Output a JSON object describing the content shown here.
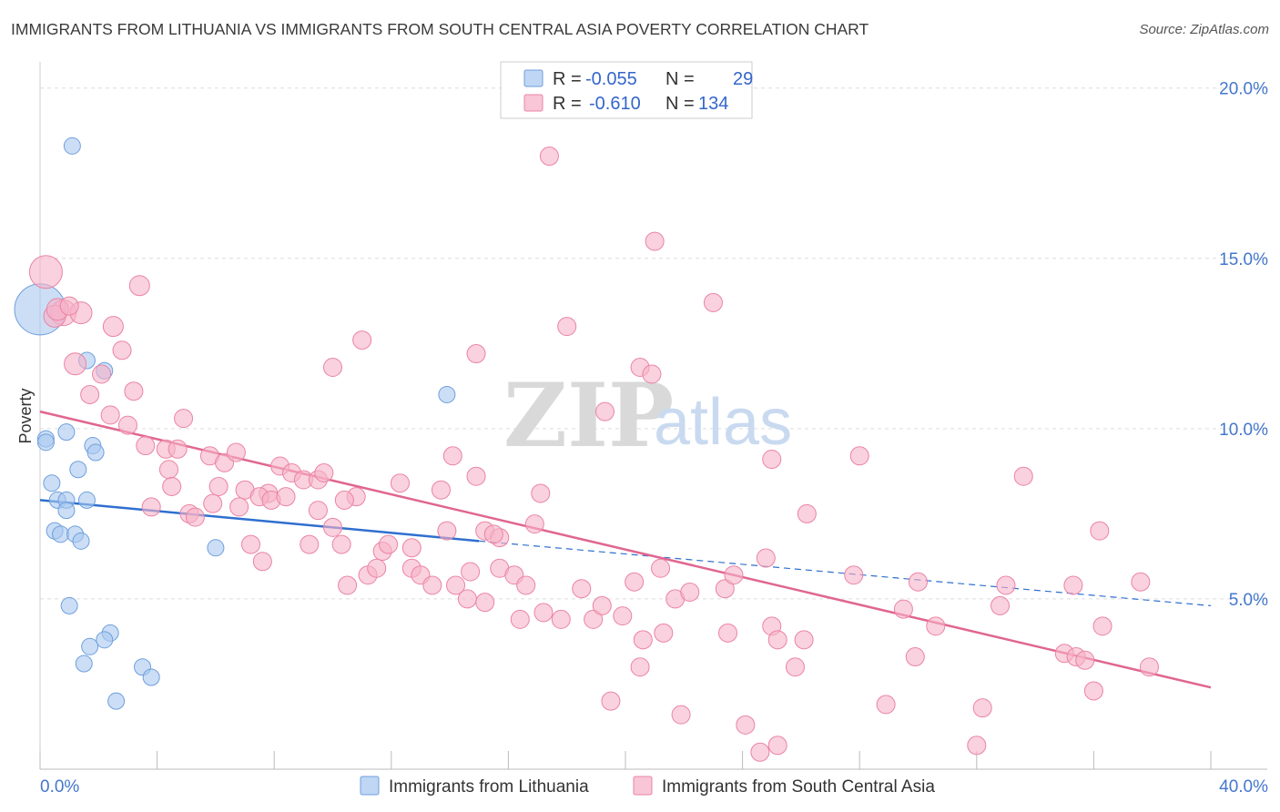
{
  "header": {
    "title": "IMMIGRANTS FROM LITHUANIA VS IMMIGRANTS FROM SOUTH CENTRAL ASIA POVERTY CORRELATION CHART",
    "source": "Source: ZipAtlas.com"
  },
  "watermark": {
    "zip": "ZIP",
    "atlas": "atlas"
  },
  "legend": {
    "rows": [
      {
        "r_label": "R =",
        "r_value": "-0.055",
        "n_label": "N =",
        "n_value": "29",
        "color": "#a9c8f0"
      },
      {
        "r_label": "R =",
        "r_value": "-0.610",
        "n_label": "N = ",
        "n_value": "134",
        "color": "#f6b3c8"
      }
    ]
  },
  "bottom_legend": {
    "items": [
      {
        "label": "Immigrants from Lithuania",
        "color": "#a9c8f0"
      },
      {
        "label": "Immigrants from South Central Asia",
        "color": "#f6b3c8"
      }
    ]
  },
  "chart_data": {
    "type": "scatter",
    "title": "IMMIGRANTS FROM LITHUANIA VS IMMIGRANTS FROM SOUTH CENTRAL ASIA POVERTY CORRELATION CHART",
    "ylabel": "Poverty",
    "xlabel": "",
    "xlim": [
      0,
      40
    ],
    "ylim": [
      0,
      20.5
    ],
    "x_tick_labels": [
      "0.0%",
      "40.0%"
    ],
    "y_ticks": [
      5,
      10,
      15,
      20
    ],
    "y_tick_labels": [
      "5.0%",
      "10.0%",
      "15.0%",
      "20.0%"
    ],
    "grid": true,
    "series": [
      {
        "name": "Immigrants from Lithuania",
        "color": "#a9c8f0",
        "edge": "#6f9fdc",
        "r": -0.055,
        "n": 29,
        "trend": {
          "x0": 0,
          "y0": 7.9,
          "x1": 15,
          "y1": 6.7,
          "dash_to_x": 40,
          "dash_to_y": 4.8
        },
        "points": [
          [
            0.0,
            13.5,
            28
          ],
          [
            1.1,
            18.3,
            9
          ],
          [
            1.6,
            12.0,
            9
          ],
          [
            2.2,
            11.7,
            9
          ],
          [
            0.2,
            9.7,
            9
          ],
          [
            0.9,
            9.9,
            9
          ],
          [
            1.8,
            9.5,
            9
          ],
          [
            1.9,
            9.3,
            9
          ],
          [
            0.4,
            8.4,
            9
          ],
          [
            1.3,
            8.8,
            9
          ],
          [
            0.6,
            7.9,
            9
          ],
          [
            0.9,
            7.9,
            9
          ],
          [
            0.9,
            7.6,
            9
          ],
          [
            1.6,
            7.9,
            9
          ],
          [
            0.5,
            7.0,
            9
          ],
          [
            0.7,
            6.9,
            9
          ],
          [
            1.2,
            6.9,
            9
          ],
          [
            1.4,
            6.7,
            9
          ],
          [
            6.0,
            6.5,
            9
          ],
          [
            13.9,
            11.0,
            9
          ],
          [
            1.0,
            4.8,
            9
          ],
          [
            2.4,
            4.0,
            9
          ],
          [
            2.2,
            3.8,
            9
          ],
          [
            1.7,
            3.6,
            9
          ],
          [
            1.5,
            3.1,
            9
          ],
          [
            3.5,
            3.0,
            9
          ],
          [
            3.8,
            2.7,
            9
          ],
          [
            2.6,
            2.0,
            9
          ],
          [
            0.2,
            9.6,
            9
          ]
        ]
      },
      {
        "name": "Immigrants from South Central Asia",
        "color": "#f6b3c8",
        "edge": "#ea84a4",
        "r": -0.61,
        "n": 134,
        "trend": {
          "x0": 0,
          "y0": 10.5,
          "x1": 40,
          "y1": 2.4
        },
        "points": [
          [
            0.2,
            14.6,
            18
          ],
          [
            0.8,
            13.4,
            14
          ],
          [
            1.4,
            13.4,
            12
          ],
          [
            0.5,
            13.3,
            12
          ],
          [
            3.4,
            14.2,
            11
          ],
          [
            2.5,
            13.0,
            11
          ],
          [
            1.2,
            11.9,
            12
          ],
          [
            2.8,
            12.3,
            10
          ],
          [
            2.1,
            11.6,
            10
          ],
          [
            1.7,
            11.0,
            10
          ],
          [
            3.2,
            11.1,
            10
          ],
          [
            2.4,
            10.4,
            10
          ],
          [
            3.0,
            10.1,
            10
          ],
          [
            4.9,
            10.3,
            10
          ],
          [
            3.6,
            9.5,
            10
          ],
          [
            4.3,
            9.4,
            10
          ],
          [
            4.7,
            9.4,
            10
          ],
          [
            5.8,
            9.2,
            10
          ],
          [
            6.3,
            9.0,
            10
          ],
          [
            6.7,
            9.3,
            10
          ],
          [
            4.4,
            8.8,
            10
          ],
          [
            4.5,
            8.3,
            10
          ],
          [
            6.1,
            8.3,
            10
          ],
          [
            7.0,
            8.2,
            10
          ],
          [
            8.2,
            8.9,
            10
          ],
          [
            8.6,
            8.7,
            10
          ],
          [
            9.0,
            8.5,
            10
          ],
          [
            9.5,
            8.5,
            10
          ],
          [
            9.7,
            8.7,
            10
          ],
          [
            7.8,
            8.1,
            10
          ],
          [
            3.8,
            7.7,
            10
          ],
          [
            5.1,
            7.5,
            10
          ],
          [
            5.3,
            7.4,
            10
          ],
          [
            5.9,
            7.8,
            10
          ],
          [
            6.8,
            7.7,
            10
          ],
          [
            7.5,
            8.0,
            10
          ],
          [
            7.9,
            7.9,
            10
          ],
          [
            8.4,
            8.0,
            10
          ],
          [
            10.8,
            8.0,
            10
          ],
          [
            10.4,
            7.9,
            10
          ],
          [
            12.3,
            8.4,
            10
          ],
          [
            13.7,
            8.2,
            10
          ],
          [
            14.1,
            9.2,
            10
          ],
          [
            14.9,
            8.6,
            10
          ],
          [
            17.1,
            8.1,
            10
          ],
          [
            9.5,
            7.6,
            10
          ],
          [
            10.0,
            7.1,
            10
          ],
          [
            13.9,
            7.0,
            10
          ],
          [
            15.2,
            7.0,
            10
          ],
          [
            15.7,
            6.8,
            10
          ],
          [
            16.9,
            7.2,
            10
          ],
          [
            7.2,
            6.6,
            10
          ],
          [
            7.6,
            6.1,
            10
          ],
          [
            9.2,
            6.6,
            10
          ],
          [
            10.3,
            6.6,
            10
          ],
          [
            11.7,
            6.4,
            10
          ],
          [
            11.9,
            6.6,
            10
          ],
          [
            12.7,
            6.5,
            10
          ],
          [
            11.2,
            5.7,
            10
          ],
          [
            11.5,
            5.9,
            10
          ],
          [
            12.7,
            5.9,
            10
          ],
          [
            13.0,
            5.7,
            10
          ],
          [
            14.7,
            5.8,
            10
          ],
          [
            15.7,
            5.9,
            10
          ],
          [
            16.2,
            5.7,
            10
          ],
          [
            10.5,
            5.4,
            10
          ],
          [
            13.4,
            5.4,
            10
          ],
          [
            14.2,
            5.4,
            10
          ],
          [
            14.6,
            5.0,
            10
          ],
          [
            15.2,
            4.9,
            10
          ],
          [
            16.6,
            5.4,
            10
          ],
          [
            18.5,
            5.3,
            10
          ],
          [
            17.8,
            4.4,
            10
          ],
          [
            16.4,
            4.4,
            10
          ],
          [
            17.2,
            4.6,
            10
          ],
          [
            18.9,
            4.4,
            10
          ],
          [
            19.2,
            4.8,
            10
          ],
          [
            19.9,
            4.5,
            10
          ],
          [
            20.3,
            5.5,
            10
          ],
          [
            21.2,
            5.9,
            10
          ],
          [
            21.7,
            5.0,
            10
          ],
          [
            22.2,
            5.2,
            10
          ],
          [
            23.4,
            5.3,
            10
          ],
          [
            23.7,
            5.7,
            10
          ],
          [
            24.8,
            6.2,
            10
          ],
          [
            25.0,
            4.2,
            10
          ],
          [
            20.6,
            3.8,
            10
          ],
          [
            21.3,
            4.0,
            10
          ],
          [
            23.5,
            4.0,
            10
          ],
          [
            25.2,
            3.8,
            10
          ],
          [
            26.1,
            3.8,
            10
          ],
          [
            20.5,
            3.0,
            10
          ],
          [
            25.8,
            3.0,
            10
          ],
          [
            19.5,
            2.0,
            10
          ],
          [
            21.9,
            1.6,
            10
          ],
          [
            24.1,
            1.3,
            10
          ],
          [
            24.6,
            0.5,
            10
          ],
          [
            25.2,
            0.7,
            10
          ],
          [
            17.4,
            18.0,
            10
          ],
          [
            21.0,
            15.5,
            10
          ],
          [
            23.0,
            13.7,
            10
          ],
          [
            18.0,
            13.0,
            10
          ],
          [
            11.0,
            12.6,
            10
          ],
          [
            14.9,
            12.2,
            10
          ],
          [
            10.0,
            11.8,
            10
          ],
          [
            20.5,
            11.8,
            10
          ],
          [
            20.9,
            11.6,
            10
          ],
          [
            19.3,
            10.5,
            10
          ],
          [
            25.0,
            9.1,
            10
          ],
          [
            28.0,
            9.2,
            10
          ],
          [
            26.2,
            7.5,
            10
          ],
          [
            27.8,
            5.7,
            10
          ],
          [
            29.5,
            4.7,
            10
          ],
          [
            30.0,
            5.5,
            10
          ],
          [
            30.6,
            4.2,
            10
          ],
          [
            29.9,
            3.3,
            10
          ],
          [
            28.9,
            1.9,
            10
          ],
          [
            32.2,
            1.8,
            10
          ],
          [
            33.0,
            5.4,
            10
          ],
          [
            33.6,
            8.6,
            10
          ],
          [
            35.3,
            5.4,
            10
          ],
          [
            36.2,
            7.0,
            10
          ],
          [
            36.3,
            4.2,
            10
          ],
          [
            37.6,
            5.5,
            10
          ],
          [
            37.9,
            3.0,
            10
          ],
          [
            32.8,
            4.8,
            10
          ],
          [
            35.0,
            3.4,
            10
          ],
          [
            35.4,
            3.3,
            10
          ],
          [
            35.7,
            3.2,
            10
          ],
          [
            36.0,
            2.3,
            10
          ],
          [
            32.0,
            0.7,
            10
          ],
          [
            0.6,
            13.5,
            12
          ],
          [
            1.0,
            13.6,
            10
          ],
          [
            15.5,
            6.9,
            10
          ]
        ]
      }
    ]
  }
}
